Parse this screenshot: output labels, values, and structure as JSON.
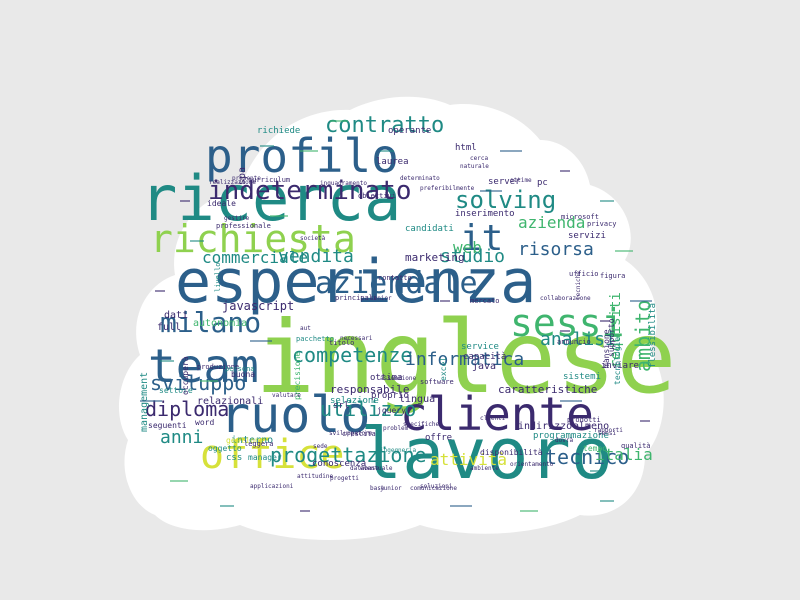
{
  "cloud": {
    "background": "#e9e9e9",
    "shape_fill": "#ffffff",
    "palette": {
      "dark": "#3b2a6e",
      "blue": "#2c5f8a",
      "teal": "#1f8a84",
      "green": "#3fb56e",
      "lime": "#8fd14f",
      "yellow": "#d6e13a"
    },
    "words": [
      {
        "text": "inglese",
        "weight": 1.0,
        "color": "lime"
      },
      {
        "text": "esperienza",
        "weight": 0.95,
        "color": "blue"
      },
      {
        "text": "lavoro",
        "weight": 0.9,
        "color": "teal"
      },
      {
        "text": "ricerca",
        "weight": 0.85,
        "color": "teal"
      },
      {
        "text": "cliente",
        "weight": 0.75,
        "color": "dark"
      },
      {
        "text": "team",
        "weight": 0.72,
        "color": "blue"
      },
      {
        "text": "ruolo",
        "weight": 0.7,
        "color": "blue"
      },
      {
        "text": "profilo",
        "weight": 0.68,
        "color": "blue"
      },
      {
        "text": "richiesta",
        "weight": 0.65,
        "color": "lime"
      },
      {
        "text": "office",
        "weight": 0.6,
        "color": "yellow"
      },
      {
        "text": "sessi",
        "weight": 0.58,
        "color": "green"
      },
      {
        "text": "milano",
        "weight": 0.55,
        "color": "blue"
      },
      {
        "text": "aziendale",
        "weight": 0.53,
        "color": "blue"
      },
      {
        "text": "indeterminato",
        "weight": 0.5,
        "color": "dark"
      },
      {
        "text": "it",
        "weight": 0.48,
        "color": "blue"
      },
      {
        "text": "solving",
        "weight": 0.4,
        "color": "teal"
      },
      {
        "text": "contratto",
        "weight": 0.38,
        "color": "teal"
      },
      {
        "text": "sviluppo",
        "weight": 0.36,
        "color": "blue"
      },
      {
        "text": "progettazione",
        "weight": 0.35,
        "color": "teal"
      },
      {
        "text": "competenze",
        "weight": 0.34,
        "color": "teal"
      },
      {
        "text": "informatica",
        "weight": 0.33,
        "color": "blue"
      },
      {
        "text": "analisi",
        "weight": 0.32,
        "color": "teal"
      },
      {
        "text": "tecnico",
        "weight": 0.32,
        "color": "blue"
      },
      {
        "text": "risorsa",
        "weight": 0.31,
        "color": "blue"
      },
      {
        "text": "diploma",
        "weight": 0.3,
        "color": "dark"
      },
      {
        "text": "azienda",
        "weight": 0.3,
        "color": "green"
      },
      {
        "text": "commerciale",
        "weight": 0.29,
        "color": "teal"
      },
      {
        "text": "vendita",
        "weight": 0.29,
        "color": "teal"
      },
      {
        "text": "utilizzo",
        "weight": 0.28,
        "color": "teal"
      },
      {
        "text": "web",
        "weight": 0.28,
        "color": "green"
      },
      {
        "text": "studio",
        "weight": 0.28,
        "color": "teal"
      },
      {
        "text": "attività",
        "weight": 0.27,
        "color": "yellow"
      },
      {
        "text": "anni",
        "weight": 0.27,
        "color": "teal"
      },
      {
        "text": "italia",
        "weight": 0.26,
        "color": "green"
      },
      {
        "text": "ambito",
        "weight": 0.26,
        "color": "green"
      },
      {
        "text": "requisiti",
        "weight": 0.25,
        "color": "green"
      },
      {
        "text": "javascript",
        "weight": 0.2,
        "color": "dark"
      },
      {
        "text": "responsabile",
        "weight": 0.18,
        "color": "dark"
      },
      {
        "text": "caratteristiche",
        "weight": 0.18,
        "color": "dark"
      },
      {
        "text": "marketing",
        "weight": 0.18,
        "color": "dark"
      },
      {
        "text": "management",
        "weight": 0.17,
        "color": "teal"
      },
      {
        "text": "relazionali",
        "weight": 0.17,
        "color": "dark"
      },
      {
        "text": "autonomia",
        "weight": 0.17,
        "color": "green"
      },
      {
        "text": "interno",
        "weight": 0.17,
        "color": "teal"
      },
      {
        "text": "conoscenza",
        "weight": 0.17,
        "color": "dark"
      },
      {
        "text": "programmazione",
        "weight": 0.16,
        "color": "teal"
      },
      {
        "text": "indirizzo",
        "weight": 0.16,
        "color": "dark"
      },
      {
        "text": "almeno",
        "weight": 0.16,
        "color": "dark"
      },
      {
        "text": "offre",
        "weight": 0.16,
        "color": "dark"
      },
      {
        "text": "lingua",
        "weight": 0.16,
        "color": "dark"
      },
      {
        "text": "selezione",
        "weight": 0.16,
        "color": "teal"
      },
      {
        "text": "java",
        "weight": 0.16,
        "color": "dark"
      },
      {
        "text": "service",
        "weight": 0.15,
        "color": "teal"
      },
      {
        "text": "capacità",
        "weight": 0.15,
        "color": "dark"
      },
      {
        "text": "inviare",
        "weight": 0.15,
        "color": "dark"
      },
      {
        "text": "sistemi",
        "weight": 0.15,
        "color": "teal"
      },
      {
        "text": "full",
        "weight": 0.15,
        "color": "dark"
      },
      {
        "text": "dati",
        "weight": 0.15,
        "color": "dark"
      },
      {
        "text": "html",
        "weight": 0.15,
        "color": "dark"
      },
      {
        "text": "spa",
        "weight": 0.15,
        "color": "dark"
      },
      {
        "text": "laurea",
        "weight": 0.15,
        "color": "dark"
      },
      {
        "text": "operante",
        "weight": 0.14,
        "color": "dark"
      },
      {
        "text": "richiede",
        "weight": 0.14,
        "color": "teal"
      },
      {
        "text": "server",
        "weight": 0.14,
        "color": "dark"
      },
      {
        "text": "pc",
        "weight": 0.14,
        "color": "dark"
      },
      {
        "text": "candidati",
        "weight": 0.14,
        "color": "teal"
      },
      {
        "text": "servizi",
        "weight": 0.14,
        "color": "dark"
      },
      {
        "text": "inserimento",
        "weight": 0.14,
        "color": "dark"
      },
      {
        "text": "proprio",
        "weight": 0.14,
        "color": "dark"
      },
      {
        "text": "srl",
        "weight": 0.14,
        "color": "dark"
      },
      {
        "text": "jquery",
        "weight": 0.13,
        "color": "dark"
      },
      {
        "text": "css",
        "weight": 0.13,
        "color": "teal"
      },
      {
        "text": "oggetto",
        "weight": 0.13,
        "color": "teal"
      },
      {
        "text": "seguenti",
        "weight": 0.13,
        "color": "dark"
      },
      {
        "text": "word",
        "weight": 0.13,
        "color": "dark"
      },
      {
        "text": "settore",
        "weight": 0.13,
        "color": "teal"
      },
      {
        "text": "buona",
        "weight": 0.13,
        "color": "dark"
      },
      {
        "text": "excel",
        "weight": 0.13,
        "color": "teal"
      },
      {
        "text": "ottima",
        "weight": 0.13,
        "color": "dark"
      },
      {
        "text": "tecnologie",
        "weight": 0.12,
        "color": "teal"
      },
      {
        "text": "mansione",
        "weight": 0.12,
        "color": "dark"
      },
      {
        "text": "supporto",
        "weight": 0.12,
        "color": "dark"
      },
      {
        "text": "flessibilità",
        "weight": 0.12,
        "color": "teal"
      },
      {
        "text": "tempo",
        "weight": 0.12,
        "color": "green"
      },
      {
        "text": "software",
        "weight": 0.11,
        "color": "dark"
      },
      {
        "text": "disponibilità",
        "weight": 0.11,
        "color": "dark"
      },
      {
        "text": "precisione",
        "weight": 0.11,
        "color": "green"
      },
      {
        "text": "ideale",
        "weight": 0.11,
        "color": "dark"
      },
      {
        "text": "gestione",
        "weight": 0.11,
        "color": "yellow"
      },
      {
        "text": "occuperà",
        "weight": 0.1,
        "color": "dark"
      },
      {
        "text": "livello",
        "weight": 0.1,
        "color": "teal"
      },
      {
        "text": "curriculum",
        "weight": 0.1,
        "color": "dark"
      },
      {
        "text": "leggera",
        "weight": 0.1,
        "color": "dark"
      },
      {
        "text": "manager",
        "weight": 0.1,
        "color": "teal"
      },
      {
        "text": "microsoft",
        "weight": 0.09,
        "color": "dark"
      },
      {
        "text": "figura",
        "weight": 0.09,
        "color": "dark"
      },
      {
        "text": "privacy",
        "weight": 0.09,
        "color": "dark"
      },
      {
        "text": "contatto",
        "weight": 0.09,
        "color": "dark"
      },
      {
        "text": "ufficio",
        "weight": 0.09,
        "color": "dark"
      },
      {
        "text": "principali",
        "weight": 0.09,
        "color": "dark"
      },
      {
        "text": "annuncio",
        "weight": 0.09,
        "color": "dark"
      },
      {
        "text": "obiettivi",
        "weight": 0.08,
        "color": "dark"
      },
      {
        "text": "professionale",
        "weight": 0.08,
        "color": "dark"
      },
      {
        "text": "produzione",
        "weight": 0.08,
        "color": "dark"
      },
      {
        "text": "persona",
        "weight": 0.08,
        "color": "teal"
      },
      {
        "text": "qualità",
        "weight": 0.08,
        "color": "dark"
      },
      {
        "text": "prodotti",
        "weight": 0.08,
        "color": "dark"
      },
      {
        "text": "mercato",
        "weight": 0.08,
        "color": "dark"
      },
      {
        "text": "rapporti",
        "weight": 0.08,
        "color": "dark"
      },
      {
        "text": "sensi",
        "weight": 0.08,
        "color": "dark"
      },
      {
        "text": "naturale",
        "weight": 0.08,
        "color": "dark"
      },
      {
        "text": "titolo",
        "weight": 0.07,
        "color": "dark"
      },
      {
        "text": "pacchetto",
        "weight": 0.07,
        "color": "teal"
      },
      {
        "text": "aut",
        "weight": 0.07,
        "color": "dark"
      },
      {
        "text": "base",
        "weight": 0.07,
        "color": "dark"
      },
      {
        "text": "comunicazione",
        "weight": 0.07,
        "color": "dark"
      },
      {
        "text": "applicazioni",
        "weight": 0.07,
        "color": "dark"
      },
      {
        "text": "crescita",
        "weight": 0.07,
        "color": "dark"
      },
      {
        "text": "ingegneria",
        "weight": 0.07,
        "color": "teal"
      },
      {
        "text": "valutare",
        "weight": 0.07,
        "color": "dark"
      },
      {
        "text": "specifiche",
        "weight": 0.07,
        "color": "dark"
      },
      {
        "text": "eventuale",
        "weight": 0.07,
        "color": "dark"
      },
      {
        "text": "presente",
        "weight": 0.07,
        "color": "dark"
      },
      {
        "text": "realizzazione",
        "weight": 0.07,
        "color": "dark"
      },
      {
        "text": "gestire",
        "weight": 0.07,
        "color": "dark"
      },
      {
        "text": "attitudine",
        "weight": 0.07,
        "color": "dark"
      },
      {
        "text": "sviluppatore",
        "weight": 0.07,
        "color": "dark"
      },
      {
        "text": "necessari",
        "weight": 0.07,
        "color": "dark"
      },
      {
        "text": "sede",
        "weight": 0.07,
        "color": "dark"
      },
      {
        "text": "problem",
        "weight": 0.07,
        "color": "dark"
      },
      {
        "text": "orientamento",
        "weight": 0.06,
        "color": "dark"
      },
      {
        "text": "dovrà",
        "weight": 0.06,
        "color": "dark"
      },
      {
        "text": "inquadramento",
        "weight": 0.06,
        "color": "dark"
      },
      {
        "text": "junior",
        "weight": 0.06,
        "color": "dark"
      },
      {
        "text": "senior",
        "weight": 0.06,
        "color": "dark"
      },
      {
        "text": "cerca",
        "weight": 0.06,
        "color": "dark"
      },
      {
        "text": "società",
        "weight": 0.06,
        "color": "dark"
      },
      {
        "text": "ottime",
        "weight": 0.06,
        "color": "dark"
      },
      {
        "text": "ambiente",
        "weight": 0.06,
        "color": "dark"
      },
      {
        "text": "clienti",
        "weight": 0.06,
        "color": "dark"
      },
      {
        "text": "tecniche",
        "weight": 0.06,
        "color": "dark"
      },
      {
        "text": "progetti",
        "weight": 0.06,
        "color": "dark"
      },
      {
        "text": "database",
        "weight": 0.06,
        "color": "dark"
      },
      {
        "text": "assunzione",
        "weight": 0.06,
        "color": "dark"
      },
      {
        "text": "determinato",
        "weight": 0.06,
        "color": "dark"
      },
      {
        "text": "preferibilmente",
        "weight": 0.06,
        "color": "dark"
      },
      {
        "text": "collaborazione",
        "weight": 0.06,
        "color": "dark"
      },
      {
        "text": "soluzioni",
        "weight": 0.06,
        "color": "dark"
      },
      {
        "text": "organizzazione",
        "weight": 0.06,
        "color": "dark"
      },
      {
        "text": "tipologia",
        "weight": 0.06,
        "color": "dark"
      },
      {
        "text": "rivolta",
        "weight": 0.06,
        "color": "dark"
      }
    ]
  }
}
